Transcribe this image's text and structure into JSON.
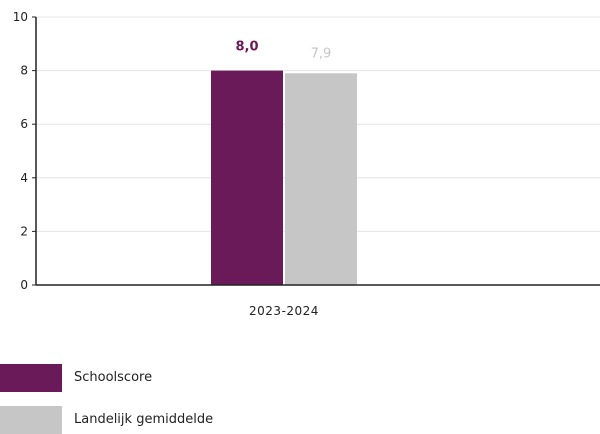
{
  "chart_data": {
    "type": "bar",
    "title": "",
    "xlabel": "",
    "ylabel": "",
    "ylim": [
      0,
      10
    ],
    "yticks": [
      0,
      2,
      4,
      6,
      8,
      10
    ],
    "grid": true,
    "categories": [
      "2023-2024"
    ],
    "series": [
      {
        "name": "Schoolscore",
        "values": [
          8.0
        ],
        "label": "8,0",
        "color": "#6b1a59"
      },
      {
        "name": "Landelijk gemiddelde",
        "values": [
          7.9
        ],
        "label": "7,9",
        "color": "#c6c6c6"
      }
    ],
    "legend": {
      "position": "bottom-left",
      "items": [
        {
          "label": "Schoolscore",
          "color": "#6b1a59"
        },
        {
          "label": "Landelijk gemiddelde",
          "color": "#c6c6c6"
        }
      ]
    }
  }
}
